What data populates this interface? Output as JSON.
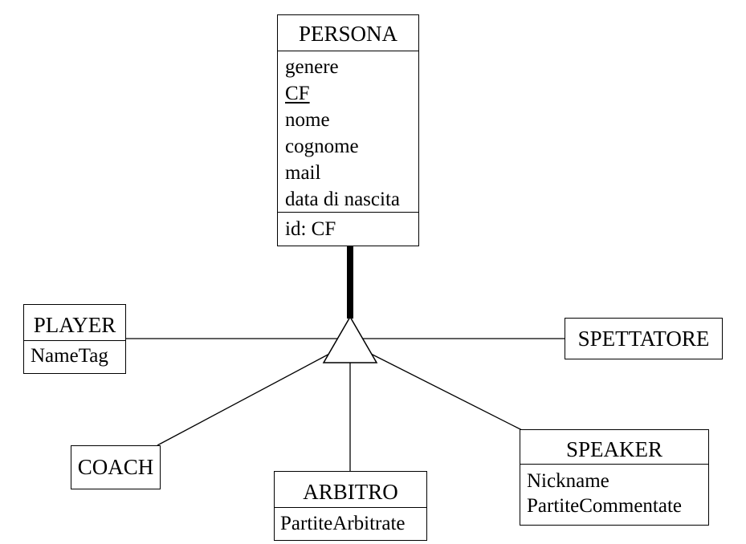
{
  "diagram": {
    "persona": {
      "name": "PERSONA",
      "attributes": [
        "genere",
        "CF",
        "nome",
        "cognome",
        "mail",
        "data di nascita"
      ],
      "identifier": "id: CF"
    },
    "player": {
      "name": "PLAYER",
      "attributes": [
        "NameTag"
      ]
    },
    "spettatore": {
      "name": "SPETTATORE"
    },
    "coach": {
      "name": "COACH"
    },
    "arbitro": {
      "name": "ARBITRO",
      "attributes": [
        "PartiteArbitrate"
      ]
    },
    "speaker": {
      "name": "SPEAKER",
      "attributes": [
        "Nickname",
        "PartiteCommentate"
      ]
    }
  }
}
